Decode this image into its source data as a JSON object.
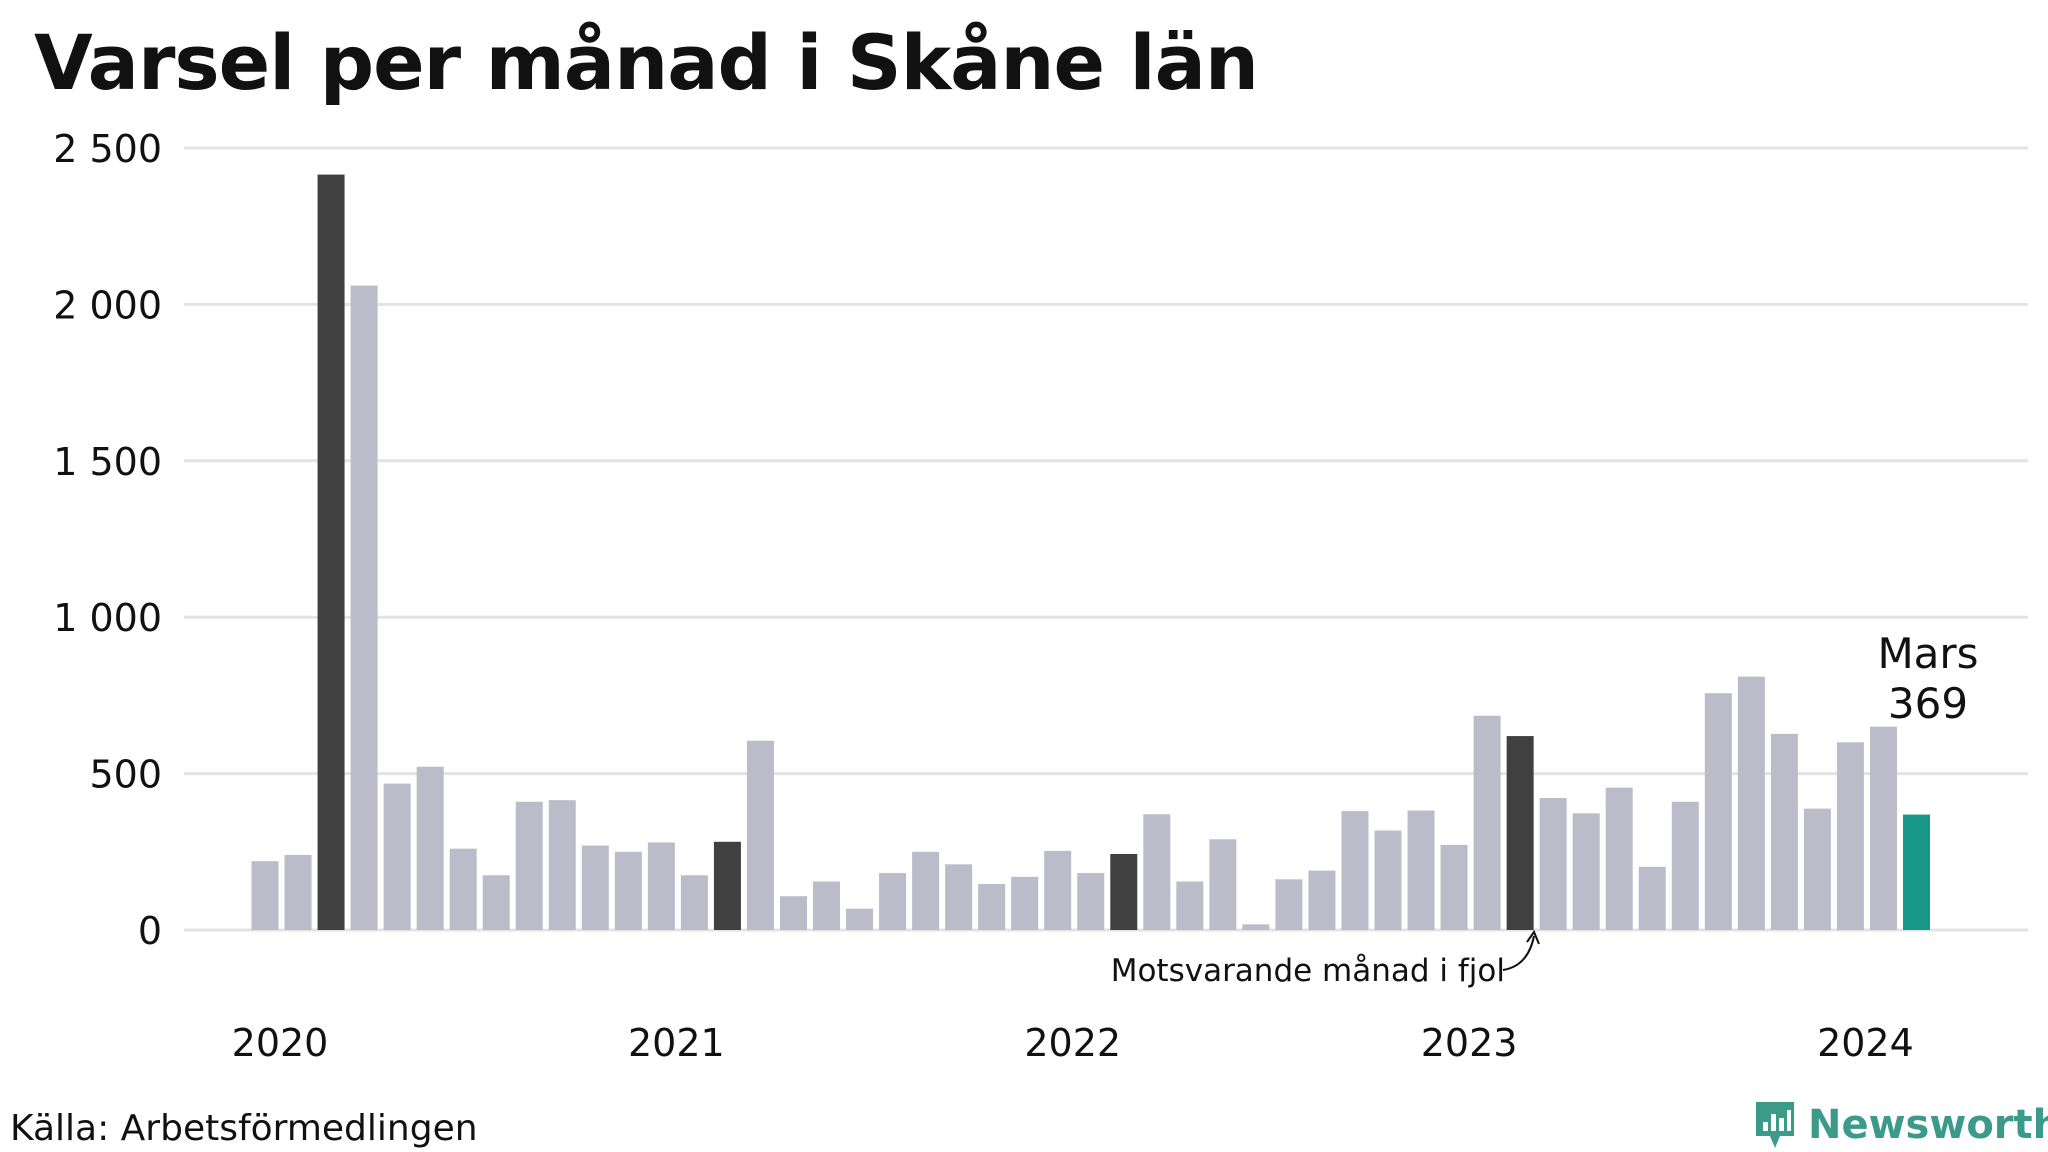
{
  "title": "Varsel per månad i Skåne län",
  "source": "Källa: Arbetsförmedlingen",
  "brand": {
    "name": "Newsworthy",
    "icon": "newsworthy-logo-icon"
  },
  "colors": {
    "default_bar": "#bcbbc9",
    "same_month_bar": "#404040",
    "latest_bar": "#17978a",
    "grid": "#e3e3e3",
    "text": "#111111",
    "brand": "#3b9a8a"
  },
  "chart_data": {
    "type": "bar",
    "title": "Varsel per månad i Skåne län",
    "xlabel": "",
    "ylabel": "",
    "ylim": [
      0,
      2500
    ],
    "yticks": [
      0,
      500,
      1000,
      1500,
      2000,
      2500
    ],
    "ytick_labels": [
      "0",
      "500",
      "1 000",
      "1 500",
      "2 000",
      "2 500"
    ],
    "grid": true,
    "x_year_labels": [
      {
        "label": "2020",
        "index": 0
      },
      {
        "label": "2021",
        "index": 12
      },
      {
        "label": "2022",
        "index": 24
      },
      {
        "label": "2023",
        "index": 36
      },
      {
        "label": "2024",
        "index": 48
      }
    ],
    "categories": [
      "2020-01",
      "2020-02",
      "2020-03",
      "2020-04",
      "2020-05",
      "2020-06",
      "2020-07",
      "2020-08",
      "2020-09",
      "2020-10",
      "2020-11",
      "2020-12",
      "2021-01",
      "2021-02",
      "2021-03",
      "2021-04",
      "2021-05",
      "2021-06",
      "2021-07",
      "2021-08",
      "2021-09",
      "2021-10",
      "2021-11",
      "2021-12",
      "2022-01",
      "2022-02",
      "2022-03",
      "2022-04",
      "2022-05",
      "2022-06",
      "2022-07",
      "2022-08",
      "2022-09",
      "2022-10",
      "2022-11",
      "2022-12",
      "2023-01",
      "2023-02",
      "2023-03",
      "2023-04",
      "2023-05",
      "2023-06",
      "2023-07",
      "2023-08",
      "2023-09",
      "2023-10",
      "2023-11",
      "2023-12",
      "2024-01",
      "2024-02",
      "2024-03"
    ],
    "values": [
      220,
      240,
      2415,
      2060,
      468,
      522,
      260,
      175,
      410,
      415,
      270,
      250,
      280,
      175,
      282,
      605,
      108,
      155,
      68,
      182,
      250,
      210,
      147,
      170,
      253,
      182,
      243,
      370,
      155,
      290,
      18,
      162,
      190,
      380,
      318,
      382,
      272,
      685,
      620,
      422,
      373,
      455,
      202,
      410,
      757,
      810,
      627,
      388,
      600,
      650,
      369
    ],
    "highlight_same_month": [
      2,
      14,
      26,
      38
    ],
    "highlight_latest": 50,
    "annotations": {
      "latest_month": "Mars",
      "latest_value": "369",
      "same_month_note": "Motsvarande månad i fjol"
    }
  }
}
